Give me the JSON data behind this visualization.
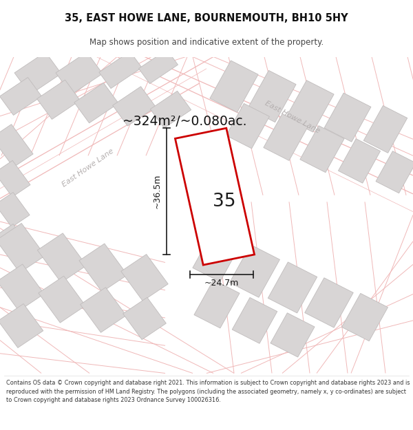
{
  "title": "35, EAST HOWE LANE, BOURNEMOUTH, BH10 5HY",
  "subtitle": "Map shows position and indicative extent of the property.",
  "area_label": "~324m²/~0.080ac.",
  "width_label": "~24.7m",
  "height_label": "~36.5m",
  "property_number": "35",
  "copyright_text": "Contains OS data © Crown copyright and database right 2021. This information is subject to Crown copyright and database rights 2023 and is reproduced with the permission of HM Land Registry. The polygons (including the associated geometry, namely x, y co-ordinates) are subject to Crown copyright and database rights 2023 Ordnance Survey 100026316.",
  "map_bg": "#f5f3f3",
  "line_color": "#f0b8b8",
  "bld_fill": "#d8d5d5",
  "bld_edge": "#c0bcbc",
  "road_lbl": "#b5b0b0",
  "prop_fill": "#ffffff",
  "prop_edge": "#cc0000",
  "dim_col": "#1a1a1a",
  "title_col": "#111111",
  "sub_col": "#444444",
  "foot_col": "#333333"
}
